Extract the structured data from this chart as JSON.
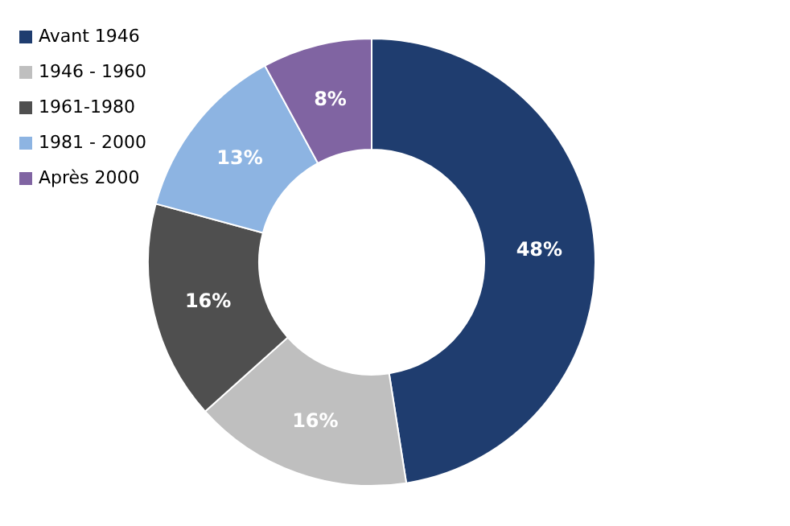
{
  "chart_data": {
    "type": "donut",
    "categories": [
      "Avant 1946",
      "1946 - 1960",
      "1961-1980",
      "1981 - 2000",
      "Après 2000"
    ],
    "values": [
      48,
      16,
      16,
      13,
      8
    ],
    "value_labels": [
      "48%",
      "16%",
      "16%",
      "13%",
      "8%"
    ],
    "colors": [
      "#1f3d6f",
      "#bfbfbf",
      "#4f4f4f",
      "#8db4e2",
      "#8064a2"
    ],
    "legend": "top left"
  }
}
